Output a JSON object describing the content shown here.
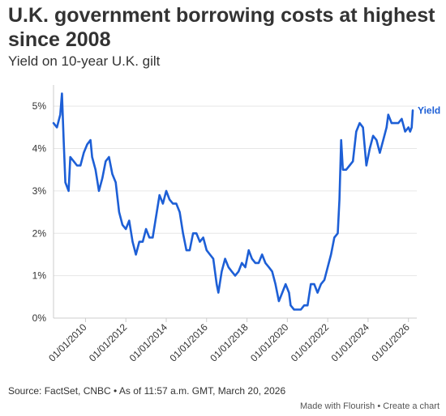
{
  "header": {
    "title": "U.K. government borrowing costs at highest since 2008",
    "subtitle": "Yield on 10-year U.K. gilt"
  },
  "footer": {
    "source": "Source: FactSet, CNBC • As of 11:57 a.m. GMT, March 20, 2026",
    "made_with": "Made with Flourish",
    "separator": "•",
    "create_chart": "Create a chart"
  },
  "colors": {
    "line": "#1d5fd6",
    "grid": "#e6e6e6",
    "axis": "#cccccc",
    "text": "#333333"
  },
  "chart_data": {
    "type": "line",
    "title": "U.K. government borrowing costs at highest since 2008",
    "subtitle": "Yield on 10-year U.K. gilt",
    "xlabel": "",
    "ylabel": "",
    "ylim": [
      0,
      5.5
    ],
    "xlim": [
      "2008-06-01",
      "2026-06-01"
    ],
    "grid": true,
    "y_ticks": [
      0,
      1,
      2,
      3,
      4,
      5
    ],
    "y_tick_labels": [
      "0%",
      "1%",
      "2%",
      "3%",
      "4%",
      "5%"
    ],
    "x_tick_labels": [
      "01/01/2010",
      "01/01/2012",
      "01/01/2014",
      "01/01/2016",
      "01/01/2018",
      "01/01/2020",
      "01/01/2022",
      "01/01/2024",
      "01/01/2026"
    ],
    "series": [
      {
        "name": "Yield",
        "color": "#1d5fd6",
        "points": [
          [
            "2008-06-01",
            4.6
          ],
          [
            "2008-08-01",
            4.5
          ],
          [
            "2008-10-01",
            4.8
          ],
          [
            "2008-11-01",
            5.3
          ],
          [
            "2008-12-01",
            4.2
          ],
          [
            "2009-01-01",
            3.2
          ],
          [
            "2009-03-01",
            3.0
          ],
          [
            "2009-04-01",
            3.8
          ],
          [
            "2009-06-01",
            3.7
          ],
          [
            "2009-08-01",
            3.6
          ],
          [
            "2009-10-01",
            3.6
          ],
          [
            "2009-12-01",
            3.9
          ],
          [
            "2010-02-01",
            4.1
          ],
          [
            "2010-04-01",
            4.2
          ],
          [
            "2010-05-01",
            3.8
          ],
          [
            "2010-07-01",
            3.5
          ],
          [
            "2010-09-01",
            3.0
          ],
          [
            "2010-11-01",
            3.3
          ],
          [
            "2011-01-01",
            3.7
          ],
          [
            "2011-03-01",
            3.8
          ],
          [
            "2011-05-01",
            3.4
          ],
          [
            "2011-07-01",
            3.2
          ],
          [
            "2011-09-01",
            2.5
          ],
          [
            "2011-11-01",
            2.2
          ],
          [
            "2012-01-01",
            2.1
          ],
          [
            "2012-03-01",
            2.3
          ],
          [
            "2012-05-01",
            1.8
          ],
          [
            "2012-07-01",
            1.5
          ],
          [
            "2012-09-01",
            1.8
          ],
          [
            "2012-11-01",
            1.8
          ],
          [
            "2013-01-01",
            2.1
          ],
          [
            "2013-03-01",
            1.9
          ],
          [
            "2013-05-01",
            1.9
          ],
          [
            "2013-07-01",
            2.4
          ],
          [
            "2013-09-01",
            2.9
          ],
          [
            "2013-11-01",
            2.7
          ],
          [
            "2014-01-01",
            3.0
          ],
          [
            "2014-03-01",
            2.8
          ],
          [
            "2014-05-01",
            2.7
          ],
          [
            "2014-07-01",
            2.7
          ],
          [
            "2014-09-01",
            2.5
          ],
          [
            "2014-11-01",
            2.0
          ],
          [
            "2015-01-01",
            1.6
          ],
          [
            "2015-03-01",
            1.6
          ],
          [
            "2015-05-01",
            2.0
          ],
          [
            "2015-07-01",
            2.0
          ],
          [
            "2015-09-01",
            1.8
          ],
          [
            "2015-11-01",
            1.9
          ],
          [
            "2016-01-01",
            1.6
          ],
          [
            "2016-03-01",
            1.5
          ],
          [
            "2016-05-01",
            1.4
          ],
          [
            "2016-07-01",
            0.8
          ],
          [
            "2016-08-01",
            0.6
          ],
          [
            "2016-10-01",
            1.1
          ],
          [
            "2016-12-01",
            1.4
          ],
          [
            "2017-02-01",
            1.2
          ],
          [
            "2017-04-01",
            1.1
          ],
          [
            "2017-06-01",
            1.0
          ],
          [
            "2017-08-01",
            1.1
          ],
          [
            "2017-10-01",
            1.3
          ],
          [
            "2017-12-01",
            1.2
          ],
          [
            "2018-02-01",
            1.6
          ],
          [
            "2018-04-01",
            1.4
          ],
          [
            "2018-06-01",
            1.3
          ],
          [
            "2018-08-01",
            1.3
          ],
          [
            "2018-10-01",
            1.5
          ],
          [
            "2018-12-01",
            1.3
          ],
          [
            "2019-02-01",
            1.2
          ],
          [
            "2019-04-01",
            1.1
          ],
          [
            "2019-06-01",
            0.8
          ],
          [
            "2019-08-01",
            0.4
          ],
          [
            "2019-10-01",
            0.6
          ],
          [
            "2019-12-01",
            0.8
          ],
          [
            "2020-02-01",
            0.6
          ],
          [
            "2020-03-01",
            0.3
          ],
          [
            "2020-05-01",
            0.2
          ],
          [
            "2020-07-01",
            0.2
          ],
          [
            "2020-09-01",
            0.2
          ],
          [
            "2020-11-01",
            0.3
          ],
          [
            "2021-01-01",
            0.3
          ],
          [
            "2021-03-01",
            0.8
          ],
          [
            "2021-05-01",
            0.8
          ],
          [
            "2021-07-01",
            0.6
          ],
          [
            "2021-09-01",
            0.8
          ],
          [
            "2021-11-01",
            0.9
          ],
          [
            "2022-01-01",
            1.2
          ],
          [
            "2022-03-01",
            1.5
          ],
          [
            "2022-05-01",
            1.9
          ],
          [
            "2022-07-01",
            2.0
          ],
          [
            "2022-08-01",
            2.8
          ],
          [
            "2022-09-01",
            4.2
          ],
          [
            "2022-10-01",
            3.5
          ],
          [
            "2022-12-01",
            3.5
          ],
          [
            "2023-02-01",
            3.6
          ],
          [
            "2023-04-01",
            3.7
          ],
          [
            "2023-06-01",
            4.4
          ],
          [
            "2023-08-01",
            4.6
          ],
          [
            "2023-10-01",
            4.5
          ],
          [
            "2023-12-01",
            3.6
          ],
          [
            "2024-02-01",
            4.0
          ],
          [
            "2024-04-01",
            4.3
          ],
          [
            "2024-06-01",
            4.2
          ],
          [
            "2024-08-01",
            3.9
          ],
          [
            "2024-10-01",
            4.2
          ],
          [
            "2024-12-01",
            4.5
          ],
          [
            "2025-01-01",
            4.8
          ],
          [
            "2025-03-01",
            4.6
          ],
          [
            "2025-05-01",
            4.6
          ],
          [
            "2025-07-01",
            4.6
          ],
          [
            "2025-09-01",
            4.7
          ],
          [
            "2025-11-01",
            4.4
          ],
          [
            "2026-01-01",
            4.5
          ],
          [
            "2026-02-01",
            4.4
          ],
          [
            "2026-03-01",
            4.5
          ],
          [
            "2026-03-20",
            4.9
          ]
        ]
      }
    ],
    "annotations": [
      "Yield"
    ]
  }
}
